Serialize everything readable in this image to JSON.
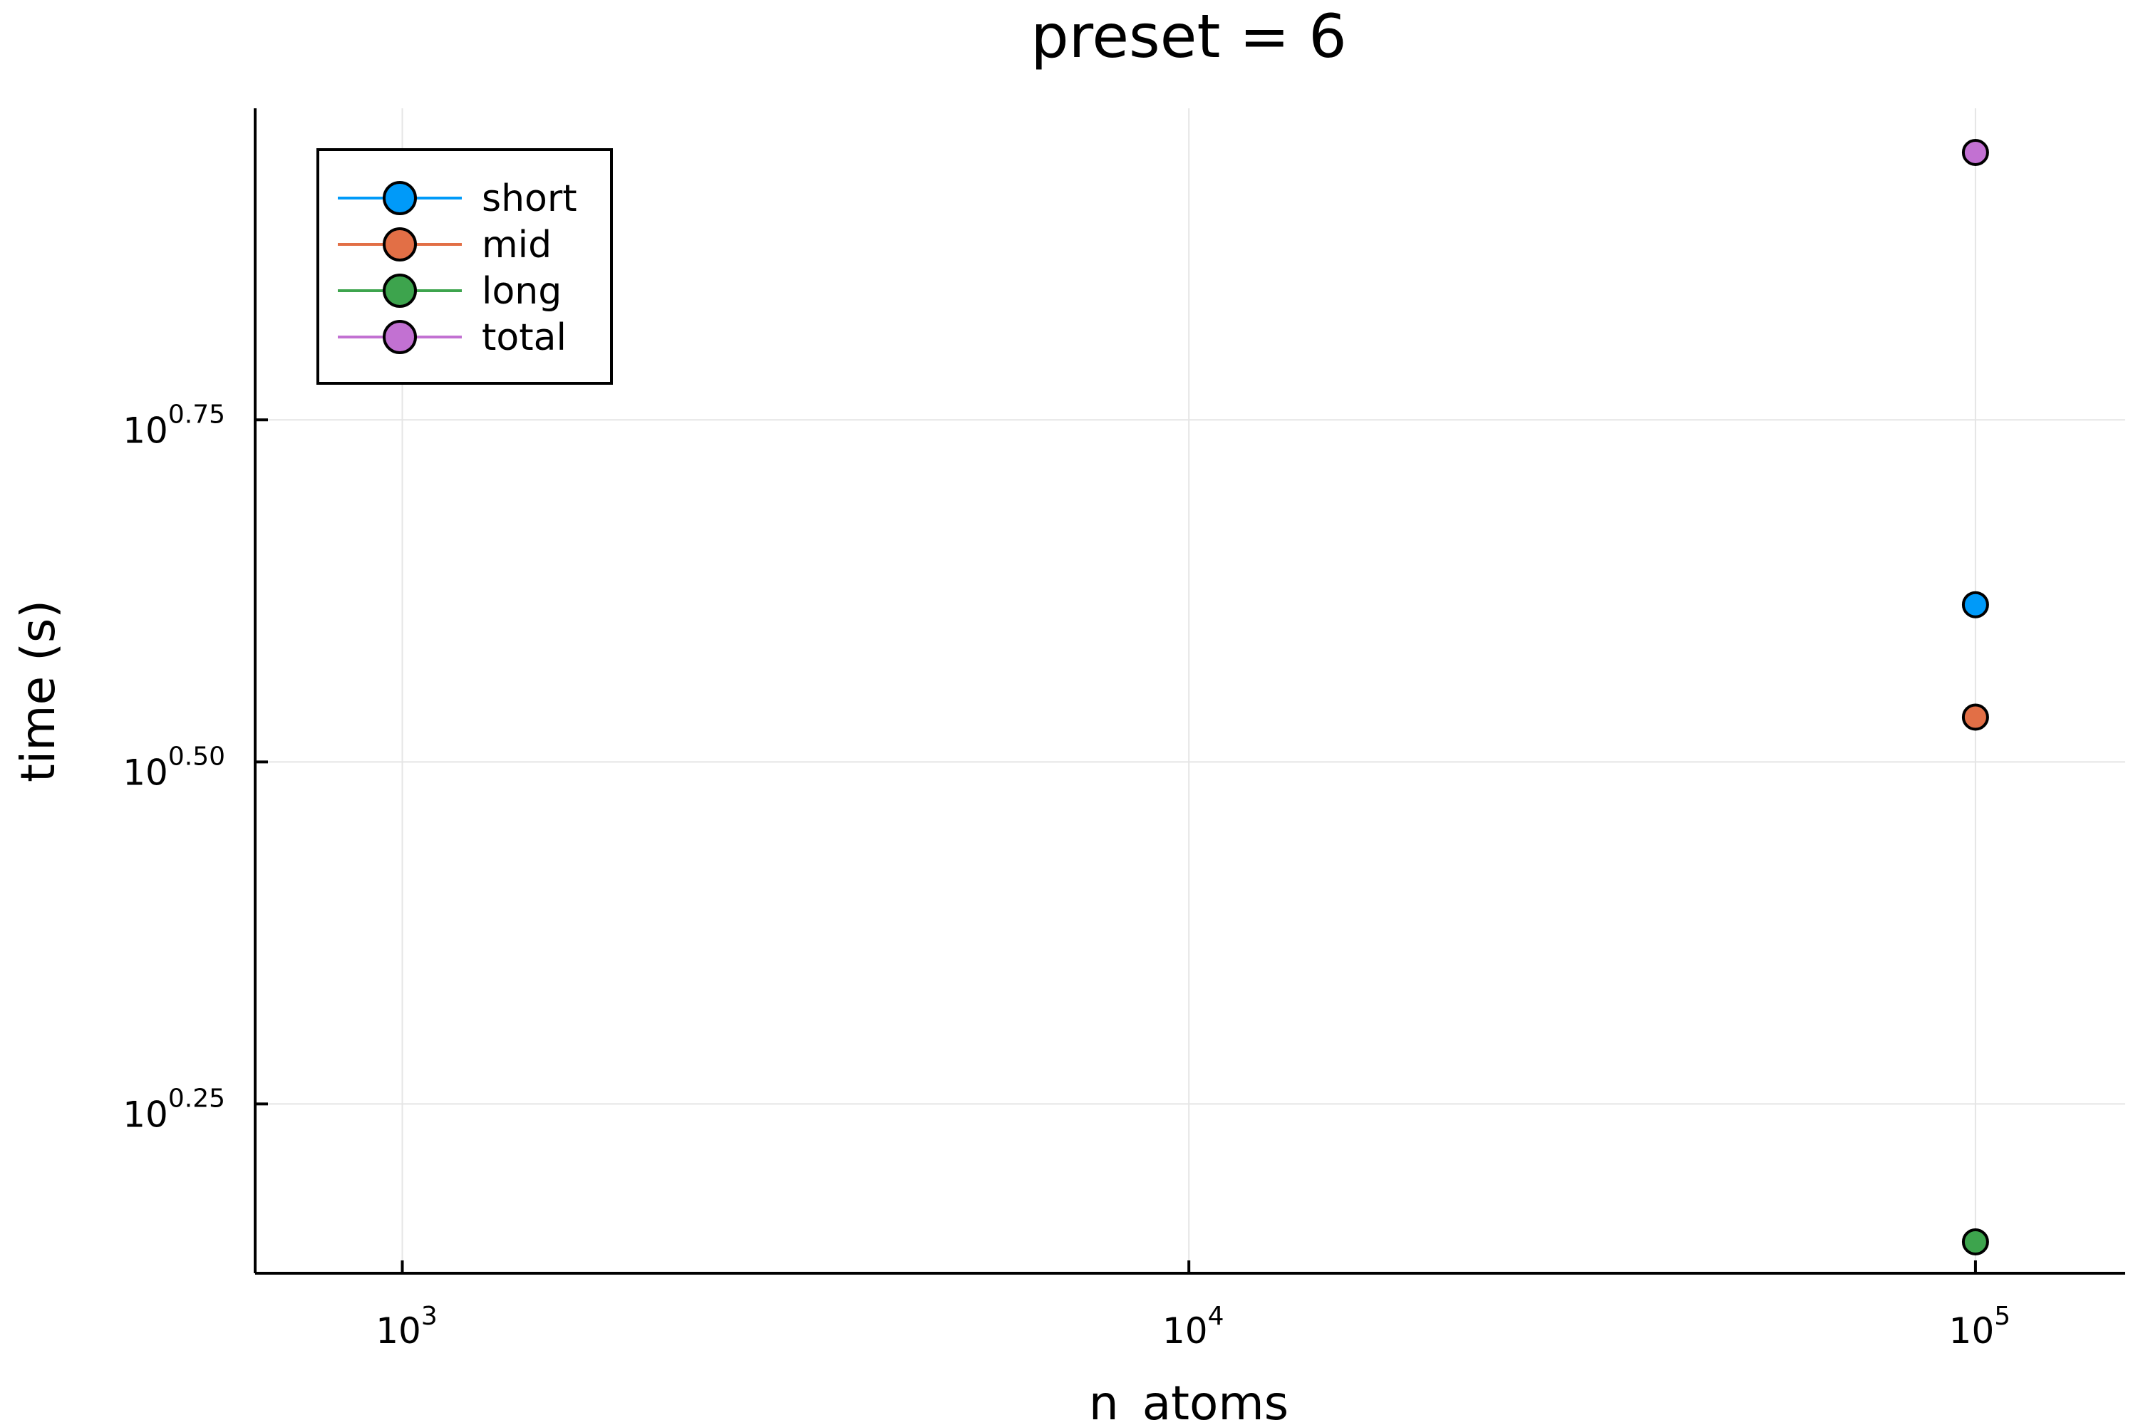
{
  "chart_data": {
    "type": "scatter",
    "title": "preset = 6",
    "xlabel": "n_atoms",
    "ylabel": "time (s)",
    "xscale": "log10",
    "yscale": "log10",
    "xlim": [
      650,
      155000
    ],
    "ylim": [
      1.3375,
      9.5
    ],
    "xticks": [
      {
        "value": 1000,
        "base": "10",
        "exp": "3"
      },
      {
        "value": 10000,
        "base": "10",
        "exp": "4"
      },
      {
        "value": 100000,
        "base": "10",
        "exp": "5"
      }
    ],
    "yticks": [
      {
        "value": 1.7783,
        "base": "10",
        "exp": "0.25"
      },
      {
        "value": 3.1623,
        "base": "10",
        "exp": "0.50"
      },
      {
        "value": 5.6234,
        "base": "10",
        "exp": "0.75"
      }
    ],
    "grid": true,
    "legend_position": "top-left",
    "series": [
      {
        "name": "short",
        "color": "#009af9",
        "x": [
          100000
        ],
        "y": [
          4.12
        ]
      },
      {
        "name": "mid",
        "color": "#e26f46",
        "x": [
          100000
        ],
        "y": [
          3.41
        ]
      },
      {
        "name": "long",
        "color": "#3da44d",
        "x": [
          100000
        ],
        "y": [
          1.41
        ]
      },
      {
        "name": "total",
        "color": "#c271d2",
        "x": [
          100000
        ],
        "y": [
          8.82
        ]
      }
    ]
  }
}
